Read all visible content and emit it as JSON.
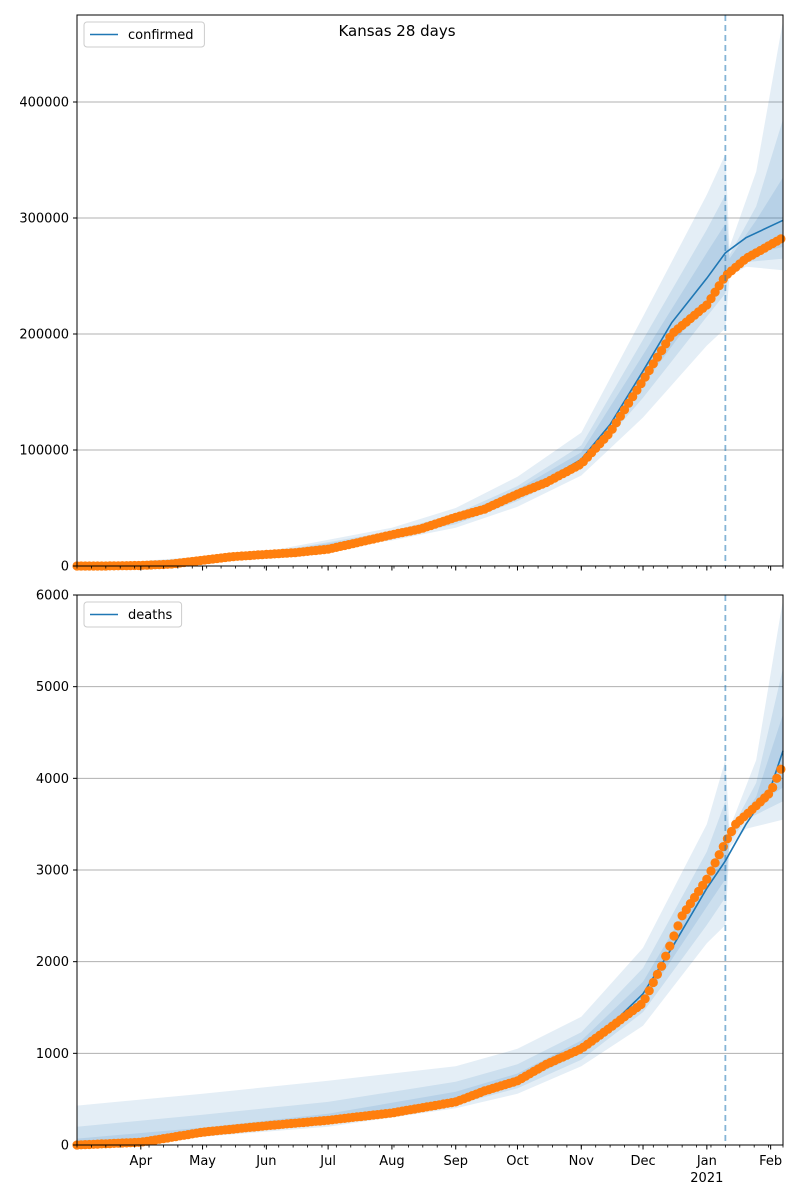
{
  "figure": {
    "title": "Kansas 28 days"
  },
  "colors": {
    "model": "#1f77b4",
    "observed": "#ff7f0e",
    "band": "#1f77b4",
    "grid": "#b0b0b0",
    "forecast_line": "#1f77b4"
  },
  "chart_data": [
    {
      "type": "line",
      "name": "confirmed",
      "legend": {
        "label": "confirmed",
        "position": "upper left"
      },
      "x_range": [
        "2020-03-01",
        "2021-02-07"
      ],
      "ylim": [
        0,
        475000
      ],
      "y_ticks": [
        0,
        100000,
        200000,
        300000,
        400000
      ],
      "y_tick_labels": [
        "0",
        "100000",
        "200000",
        "300000",
        "400000"
      ],
      "grid": true,
      "forecast_start": "2021-01-10",
      "model_line": [
        [
          "2020-03-01",
          0
        ],
        [
          "2020-03-15",
          20
        ],
        [
          "2020-04-01",
          800
        ],
        [
          "2020-04-15",
          2000
        ],
        [
          "2020-05-01",
          5000
        ],
        [
          "2020-05-15",
          8000
        ],
        [
          "2020-06-01",
          10000
        ],
        [
          "2020-06-15",
          11500
        ],
        [
          "2020-07-01",
          14000
        ],
        [
          "2020-07-15",
          19500
        ],
        [
          "2020-08-01",
          27000
        ],
        [
          "2020-08-15",
          32000
        ],
        [
          "2020-09-01",
          40000
        ],
        [
          "2020-09-15",
          49000
        ],
        [
          "2020-10-01",
          62000
        ],
        [
          "2020-10-15",
          74000
        ],
        [
          "2020-11-01",
          92000
        ],
        [
          "2020-11-15",
          122000
        ],
        [
          "2020-12-01",
          168000
        ],
        [
          "2020-12-15",
          210000
        ],
        [
          "2021-01-01",
          248000
        ],
        [
          "2021-01-10",
          270000
        ],
        [
          "2021-01-20",
          283000
        ],
        [
          "2021-02-07",
          298000
        ]
      ],
      "bands": [
        {
          "lower": [
            [
              "2020-03-01",
              0
            ],
            [
              "2020-06-01",
              8500
            ],
            [
              "2020-08-01",
              22000
            ],
            [
              "2020-09-01",
              33000
            ],
            [
              "2020-10-01",
              51000
            ],
            [
              "2020-11-01",
              78000
            ],
            [
              "2020-12-01",
              128000
            ],
            [
              "2021-01-01",
              190000
            ],
            [
              "2021-01-10",
              205000
            ],
            [
              "2021-01-12",
              250000
            ],
            [
              "2021-01-20",
              258000
            ],
            [
              "2021-02-07",
              255000
            ]
          ],
          "upper": [
            [
              "2020-03-01",
              0
            ],
            [
              "2020-06-01",
              12500
            ],
            [
              "2020-08-01",
              33000
            ],
            [
              "2020-09-01",
              50000
            ],
            [
              "2020-10-01",
              77000
            ],
            [
              "2020-11-01",
              115000
            ],
            [
              "2020-12-01",
              215000
            ],
            [
              "2021-01-01",
              320000
            ],
            [
              "2021-01-10",
              355000
            ],
            [
              "2021-01-12",
              275000
            ],
            [
              "2021-01-25",
              340000
            ],
            [
              "2021-02-07",
              470000
            ]
          ]
        },
        {
          "lower": [
            [
              "2020-03-01",
              0
            ],
            [
              "2020-06-01",
              9200
            ],
            [
              "2020-08-01",
              24500
            ],
            [
              "2020-09-01",
              36000
            ],
            [
              "2020-10-01",
              56000
            ],
            [
              "2020-11-01",
              84000
            ],
            [
              "2020-12-01",
              145000
            ],
            [
              "2021-01-01",
              215000
            ],
            [
              "2021-01-10",
              235000
            ],
            [
              "2021-01-12",
              255000
            ],
            [
              "2021-01-20",
              262000
            ],
            [
              "2021-02-07",
              265000
            ]
          ],
          "upper": [
            [
              "2020-03-01",
              0
            ],
            [
              "2020-06-01",
              11300
            ],
            [
              "2020-08-01",
              30000
            ],
            [
              "2020-09-01",
              45000
            ],
            [
              "2020-10-01",
              69000
            ],
            [
              "2020-11-01",
              104000
            ],
            [
              "2020-12-01",
              195000
            ],
            [
              "2021-01-01",
              290000
            ],
            [
              "2021-01-10",
              320000
            ],
            [
              "2021-01-12",
              268000
            ],
            [
              "2021-01-25",
              310000
            ],
            [
              "2021-02-07",
              385000
            ]
          ]
        },
        {
          "lower": [
            [
              "2020-03-01",
              0
            ],
            [
              "2020-06-01",
              9700
            ],
            [
              "2020-08-01",
              26000
            ],
            [
              "2020-09-01",
              38000
            ],
            [
              "2020-10-01",
              59000
            ],
            [
              "2020-11-01",
              88000
            ],
            [
              "2020-12-01",
              156000
            ],
            [
              "2021-01-01",
              230000
            ],
            [
              "2021-01-10",
              250000
            ],
            [
              "2021-01-12",
              258000
            ],
            [
              "2021-01-20",
              268000
            ],
            [
              "2021-02-07",
              275000
            ]
          ],
          "upper": [
            [
              "2020-03-01",
              0
            ],
            [
              "2020-06-01",
              10600
            ],
            [
              "2020-08-01",
              28500
            ],
            [
              "2020-09-01",
              42500
            ],
            [
              "2020-10-01",
              66000
            ],
            [
              "2020-11-01",
              98000
            ],
            [
              "2020-12-01",
              182000
            ],
            [
              "2021-01-01",
              270000
            ],
            [
              "2021-01-10",
              295000
            ],
            [
              "2021-01-12",
              265000
            ],
            [
              "2021-01-25",
              298000
            ],
            [
              "2021-02-07",
              335000
            ]
          ]
        }
      ],
      "observed": [
        [
          "2020-03-01",
          0
        ],
        [
          "2020-03-15",
          10
        ],
        [
          "2020-04-01",
          500
        ],
        [
          "2020-04-15",
          1500
        ],
        [
          "2020-05-01",
          5000
        ],
        [
          "2020-05-15",
          8000
        ],
        [
          "2020-06-01",
          10000
        ],
        [
          "2020-06-15",
          11500
        ],
        [
          "2020-07-01",
          14500
        ],
        [
          "2020-07-15",
          20000
        ],
        [
          "2020-08-01",
          27000
        ],
        [
          "2020-08-15",
          32000
        ],
        [
          "2020-09-01",
          42000
        ],
        [
          "2020-09-15",
          49000
        ],
        [
          "2020-10-01",
          62000
        ],
        [
          "2020-10-15",
          72000
        ],
        [
          "2020-11-01",
          88000
        ],
        [
          "2020-11-15",
          115000
        ],
        [
          "2020-12-01",
          160000
        ],
        [
          "2020-12-15",
          200000
        ],
        [
          "2021-01-01",
          225000
        ],
        [
          "2021-01-10",
          250000
        ],
        [
          "2021-01-20",
          265000
        ],
        [
          "2021-02-07",
          283000
        ]
      ]
    },
    {
      "type": "line",
      "name": "deaths",
      "legend": {
        "label": "deaths",
        "position": "upper left"
      },
      "x_range": [
        "2020-03-01",
        "2021-02-07"
      ],
      "ylim": [
        0,
        6000
      ],
      "y_ticks": [
        0,
        1000,
        2000,
        3000,
        4000,
        5000,
        6000
      ],
      "y_tick_labels": [
        "0",
        "1000",
        "2000",
        "3000",
        "4000",
        "5000",
        "6000"
      ],
      "x_ticks": [
        "2020-04-01",
        "2020-05-01",
        "2020-06-01",
        "2020-07-01",
        "2020-08-01",
        "2020-09-01",
        "2020-10-01",
        "2020-11-01",
        "2020-12-01",
        "2021-01-01",
        "2021-02-01"
      ],
      "x_tick_labels": [
        "Apr",
        "May",
        "Jun",
        "Jul",
        "Aug",
        "Sep",
        "Oct",
        "Nov",
        "Dec",
        "Jan",
        "Feb"
      ],
      "x_year_label": "2021",
      "grid": true,
      "forecast_start": "2021-01-10",
      "model_line": [
        [
          "2020-03-01",
          0
        ],
        [
          "2020-04-01",
          40
        ],
        [
          "2020-04-15",
          100
        ],
        [
          "2020-05-01",
          140
        ],
        [
          "2020-06-01",
          220
        ],
        [
          "2020-07-01",
          280
        ],
        [
          "2020-08-01",
          360
        ],
        [
          "2020-09-01",
          500
        ],
        [
          "2020-09-15",
          590
        ],
        [
          "2020-10-01",
          720
        ],
        [
          "2020-10-15",
          860
        ],
        [
          "2020-11-01",
          1080
        ],
        [
          "2020-11-15",
          1300
        ],
        [
          "2020-12-01",
          1650
        ],
        [
          "2020-12-15",
          2150
        ],
        [
          "2021-01-01",
          2800
        ],
        [
          "2021-01-10",
          3100
        ],
        [
          "2021-01-20",
          3500
        ],
        [
          "2021-02-01",
          3900
        ],
        [
          "2021-02-07",
          4300
        ]
      ],
      "bands": [
        {
          "lower": [
            [
              "2020-03-01",
              0
            ],
            [
              "2020-05-01",
              90
            ],
            [
              "2020-07-01",
              200
            ],
            [
              "2020-09-01",
              400
            ],
            [
              "2020-10-01",
              560
            ],
            [
              "2020-11-01",
              860
            ],
            [
              "2020-12-01",
              1300
            ],
            [
              "2021-01-01",
              2200
            ],
            [
              "2021-01-10",
              2400
            ],
            [
              "2021-01-12",
              3250
            ],
            [
              "2021-01-20",
              3450
            ],
            [
              "2021-02-07",
              3550
            ]
          ],
          "upper": [
            [
              "2020-03-01",
              430
            ],
            [
              "2020-05-01",
              560
            ],
            [
              "2020-07-01",
              700
            ],
            [
              "2020-09-01",
              860
            ],
            [
              "2020-10-01",
              1050
            ],
            [
              "2020-11-01",
              1400
            ],
            [
              "2020-12-01",
              2150
            ],
            [
              "2021-01-01",
              3500
            ],
            [
              "2021-01-10",
              4200
            ],
            [
              "2021-01-12",
              3450
            ],
            [
              "2021-01-25",
              4200
            ],
            [
              "2021-02-07",
              5950
            ]
          ]
        },
        {
          "lower": [
            [
              "2020-03-01",
              0
            ],
            [
              "2020-05-01",
              110
            ],
            [
              "2020-07-01",
              240
            ],
            [
              "2020-09-01",
              440
            ],
            [
              "2020-10-01",
              620
            ],
            [
              "2020-11-01",
              930
            ],
            [
              "2020-12-01",
              1450
            ],
            [
              "2021-01-01",
              2400
            ],
            [
              "2021-01-10",
              2700
            ],
            [
              "2021-01-12",
              3300
            ],
            [
              "2021-01-20",
              3550
            ],
            [
              "2021-02-07",
              3750
            ]
          ],
          "upper": [
            [
              "2020-03-01",
              200
            ],
            [
              "2020-05-01",
              330
            ],
            [
              "2020-07-01",
              470
            ],
            [
              "2020-09-01",
              690
            ],
            [
              "2020-10-01",
              880
            ],
            [
              "2020-11-01",
              1230
            ],
            [
              "2020-12-01",
              1930
            ],
            [
              "2021-01-01",
              3200
            ],
            [
              "2021-01-10",
              3750
            ],
            [
              "2021-01-12",
              3400
            ],
            [
              "2021-01-25",
              3950
            ],
            [
              "2021-02-07",
              5200
            ]
          ]
        },
        {
          "lower": [
            [
              "2020-03-01",
              0
            ],
            [
              "2020-05-01",
              125
            ],
            [
              "2020-07-01",
              260
            ],
            [
              "2020-09-01",
              470
            ],
            [
              "2020-10-01",
              670
            ],
            [
              "2020-11-01",
              1000
            ],
            [
              "2020-12-01",
              1550
            ],
            [
              "2021-01-01",
              2600
            ],
            [
              "2021-01-10",
              2900
            ],
            [
              "2021-01-12",
              3320
            ],
            [
              "2021-01-20",
              3650
            ],
            [
              "2021-02-07",
              3900
            ]
          ],
          "upper": [
            [
              "2020-03-01",
              70
            ],
            [
              "2020-05-01",
              190
            ],
            [
              "2020-07-01",
              340
            ],
            [
              "2020-09-01",
              580
            ],
            [
              "2020-10-01",
              780
            ],
            [
              "2020-11-01",
              1140
            ],
            [
              "2020-12-01",
              1780
            ],
            [
              "2021-01-01",
              2950
            ],
            [
              "2021-01-10",
              3350
            ],
            [
              "2021-01-12",
              3380
            ],
            [
              "2021-01-25",
              3800
            ],
            [
              "2021-02-07",
              4700
            ]
          ]
        }
      ],
      "observed": [
        [
          "2020-03-01",
          0
        ],
        [
          "2020-04-01",
          30
        ],
        [
          "2020-04-15",
          80
        ],
        [
          "2020-05-01",
          140
        ],
        [
          "2020-06-01",
          210
        ],
        [
          "2020-07-01",
          270
        ],
        [
          "2020-08-01",
          350
        ],
        [
          "2020-09-01",
          470
        ],
        [
          "2020-09-15",
          590
        ],
        [
          "2020-10-01",
          700
        ],
        [
          "2020-10-15",
          880
        ],
        [
          "2020-11-01",
          1050
        ],
        [
          "2020-11-15",
          1280
        ],
        [
          "2020-12-01",
          1550
        ],
        [
          "2020-12-10",
          1950
        ],
        [
          "2020-12-20",
          2500
        ],
        [
          "2021-01-01",
          2900
        ],
        [
          "2021-01-10",
          3300
        ],
        [
          "2021-01-15",
          3500
        ],
        [
          "2021-01-25",
          3700
        ],
        [
          "2021-02-01",
          3850
        ],
        [
          "2021-02-07",
          4150
        ]
      ]
    }
  ]
}
